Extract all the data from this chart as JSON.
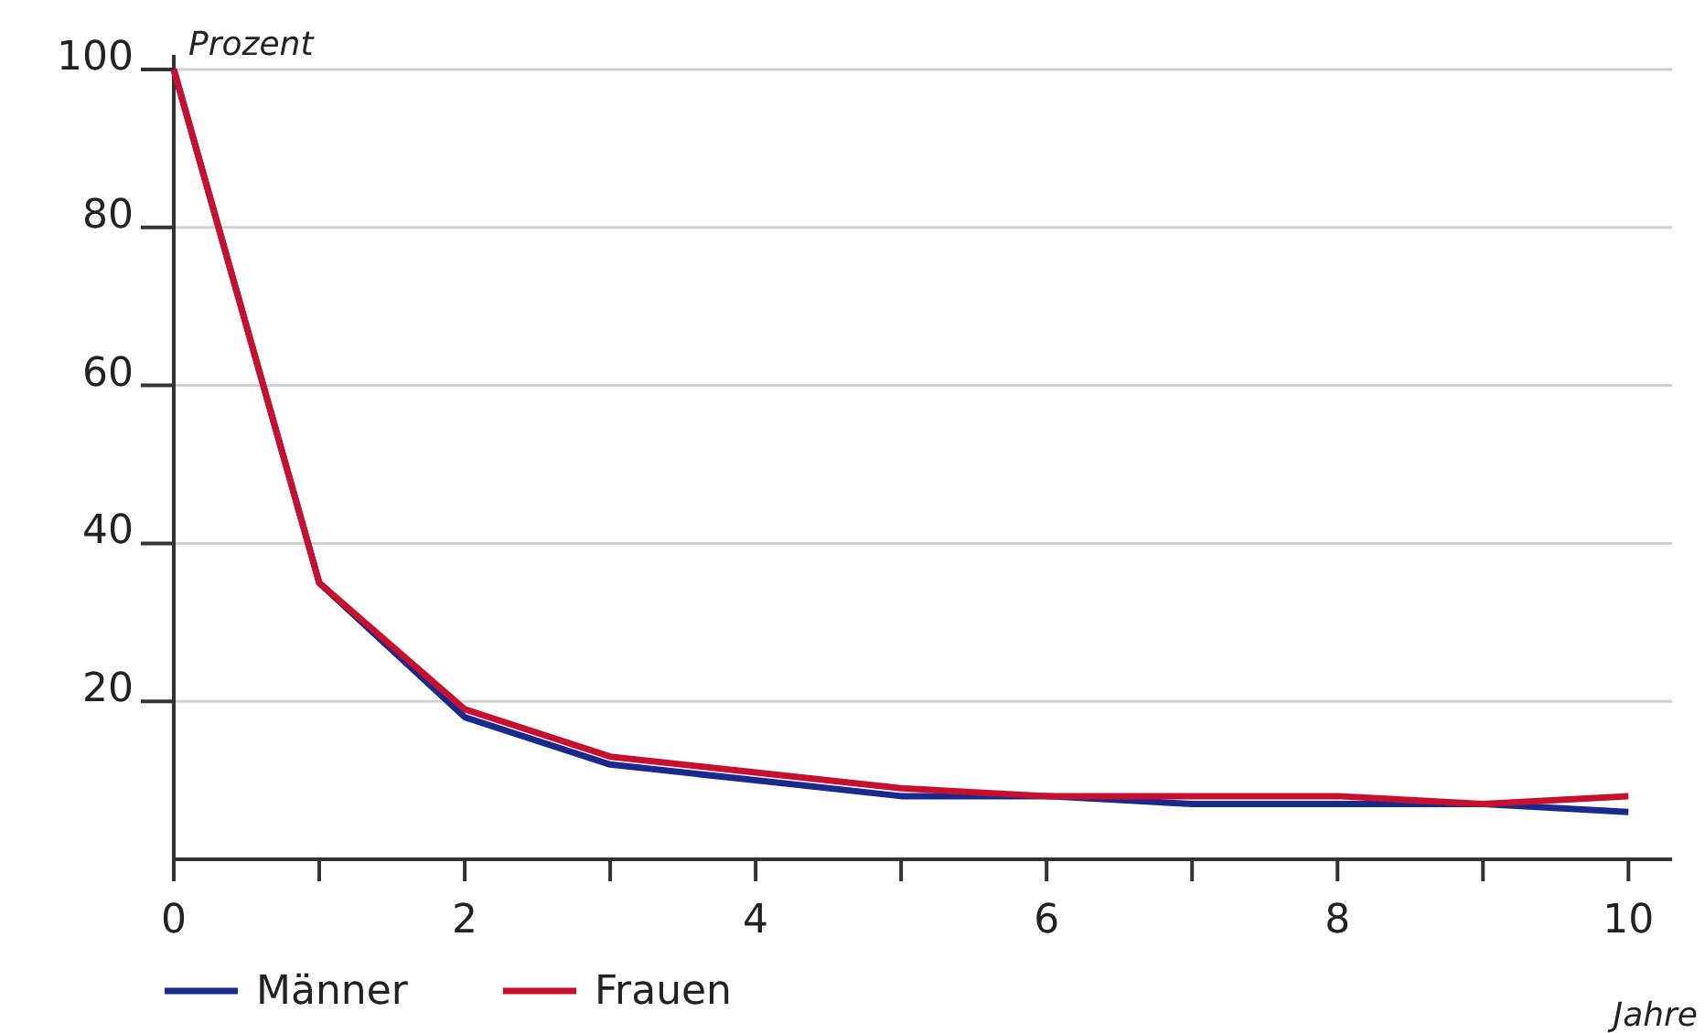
{
  "chart_data": {
    "type": "line",
    "ylabel": "Prozent",
    "xlabel": "Jahre",
    "x": [
      0,
      1,
      2,
      3,
      4,
      5,
      6,
      7,
      8,
      9,
      10
    ],
    "series": [
      {
        "name": "Männer",
        "color": "#1a2a8c",
        "values": [
          100,
          35,
          18,
          12,
          10,
          8,
          8,
          7,
          7,
          7,
          6
        ]
      },
      {
        "name": "Frauen",
        "color": "#c8102e",
        "values": [
          100,
          35,
          19,
          13,
          11,
          9,
          8,
          8,
          8,
          7,
          8
        ]
      }
    ],
    "xlim": [
      0,
      10.3
    ],
    "xticks": [
      0,
      {
        "value": 1,
        "label": null
      },
      2,
      {
        "value": 3,
        "label": null
      },
      4,
      {
        "value": 5,
        "label": null
      },
      6,
      {
        "value": 7,
        "label": null
      },
      8,
      {
        "value": 9,
        "label": null
      },
      10
    ],
    "ylim": [
      0,
      100
    ],
    "yticks": [
      20,
      40,
      60,
      80,
      100
    ],
    "grid": "y",
    "legend": "bottom left",
    "marker": "none",
    "line_style": "solid"
  }
}
